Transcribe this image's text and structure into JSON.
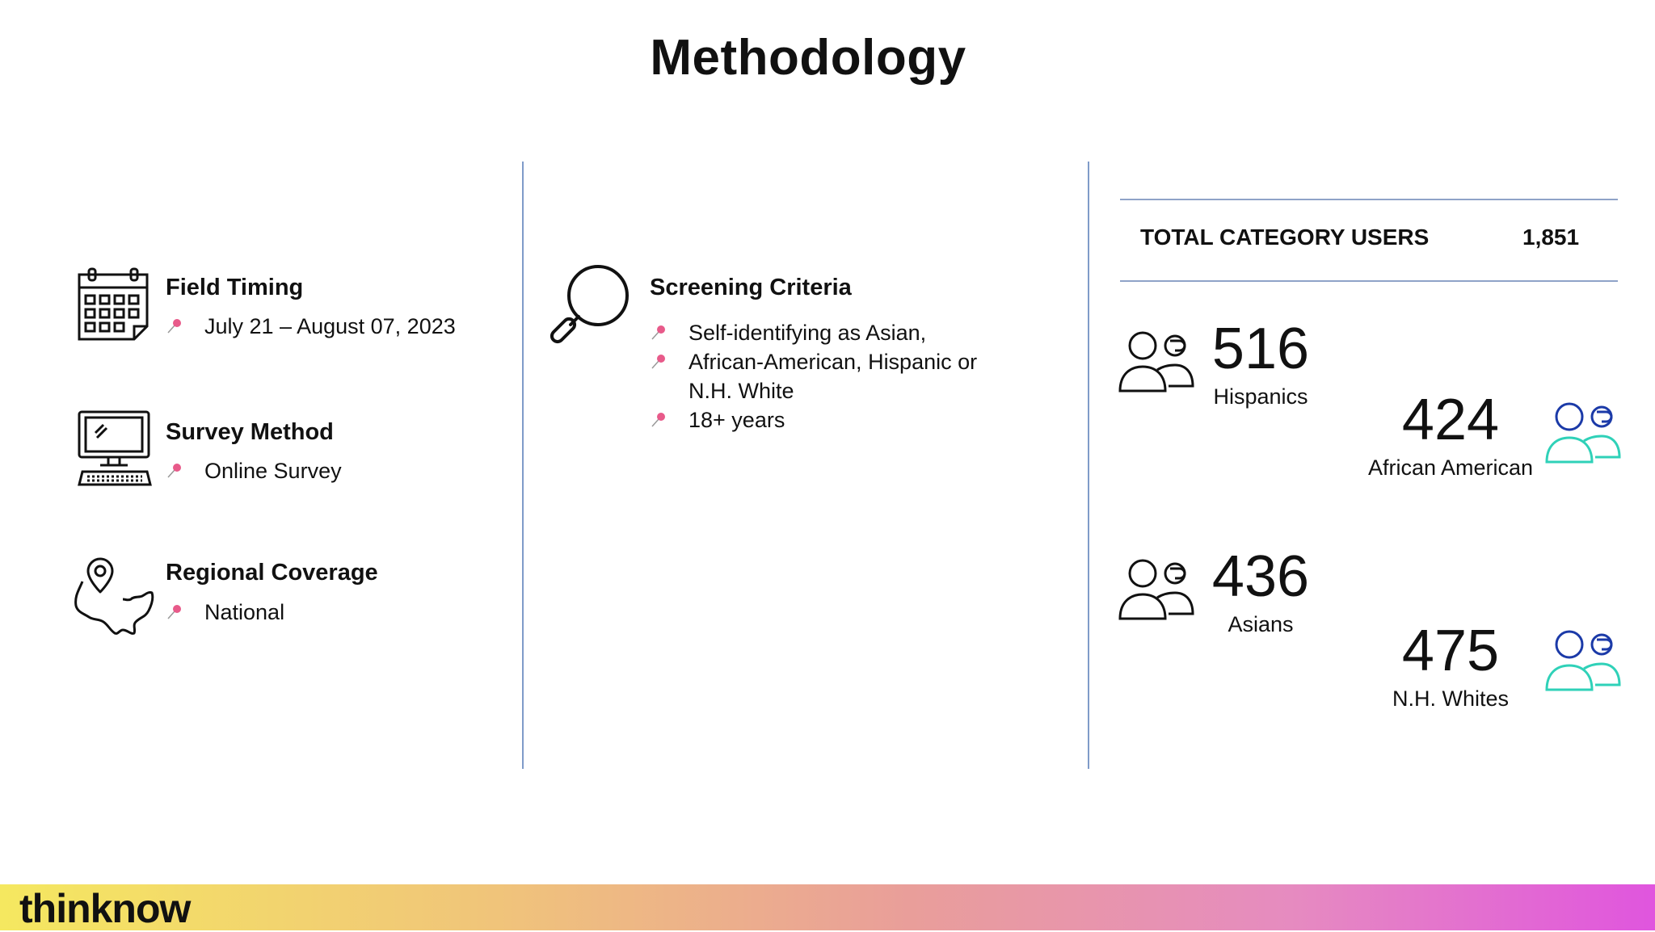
{
  "title": "Methodology",
  "field_timing": {
    "title": "Field Timing",
    "items": [
      "July 21 – August 07, 2023"
    ],
    "icon": "calendar-icon"
  },
  "survey_method": {
    "title": "Survey Method",
    "items": [
      "Online Survey"
    ],
    "icon": "computer-icon"
  },
  "regional_coverage": {
    "title": "Regional Coverage",
    "items": [
      "National"
    ],
    "icon": "us-map-pin-icon"
  },
  "screening": {
    "title": "Screening Criteria",
    "items": [
      "Self-identifying as Asian,",
      "African-American, Hispanic or",
      "N.H. White",
      "18+ years"
    ],
    "icon": "magnifier-icon"
  },
  "totals": {
    "label": "TOTAL CATEGORY USERS",
    "value": "1,851"
  },
  "groups": [
    {
      "count": "516",
      "label": "Hispanics"
    },
    {
      "count": "424",
      "label": "African American"
    },
    {
      "count": "436",
      "label": "Asians"
    },
    {
      "count": "475",
      "label": "N.H. Whites"
    }
  ],
  "footer": {
    "logo": "thinknow"
  },
  "colors": {
    "divider": "#7f9bc9",
    "icon_blue": "#1b3aa8",
    "icon_teal": "#2fd1b8",
    "bullet_pink": "#e85a8a"
  }
}
